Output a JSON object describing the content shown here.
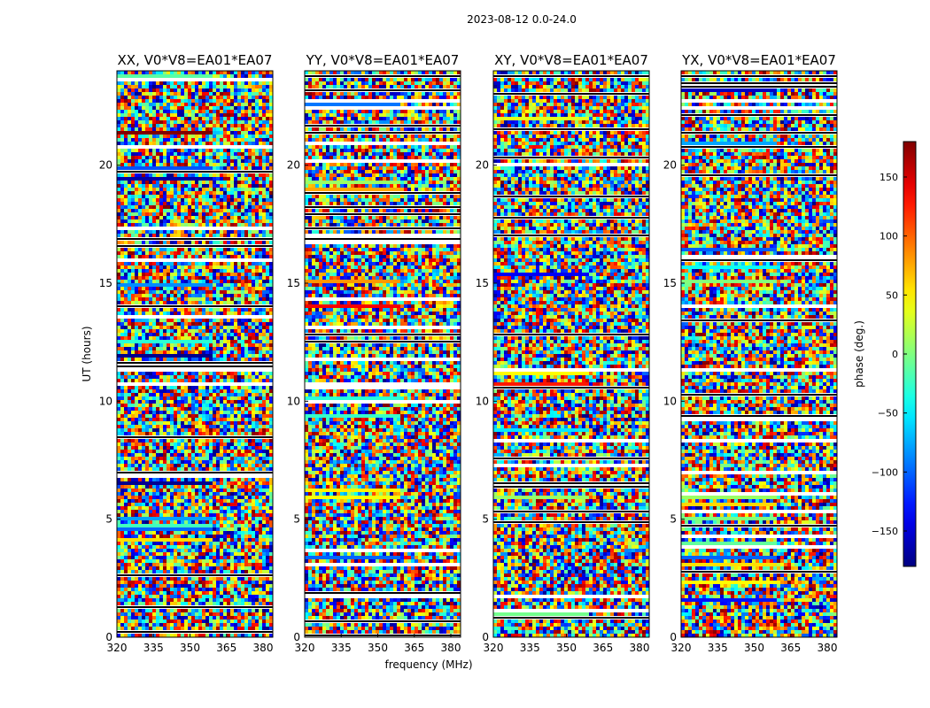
{
  "figure_title": "2023-08-12 0.0-24.0",
  "chart_data": {
    "type": "heatmap",
    "suptitle": "2023-08-12 0.0-24.0",
    "ylabel": "UT (hours)",
    "xlabel": "frequency (MHz)",
    "xlim": [
      320,
      384
    ],
    "ylim": [
      0,
      24
    ],
    "xticks": [
      "320",
      "335",
      "350",
      "365",
      "380"
    ],
    "yticks": [
      "0",
      "5",
      "10",
      "15",
      "20"
    ],
    "panels": [
      {
        "title": "XX, V0*V8=EA01*EA07",
        "seed": 11
      },
      {
        "title": "YY, V0*V8=EA01*EA07",
        "seed": 23
      },
      {
        "title": "XY, V0*V8=EA01*EA07",
        "seed": 37
      },
      {
        "title": "YX, V0*V8=EA01*EA07",
        "seed": 51
      }
    ],
    "colorbar": {
      "label": "phase (deg.)",
      "range": [
        -180,
        180
      ],
      "ticks": [
        "150",
        "100",
        "50",
        "0",
        "−50",
        "−100",
        "−150"
      ],
      "colormap": "jet"
    }
  }
}
